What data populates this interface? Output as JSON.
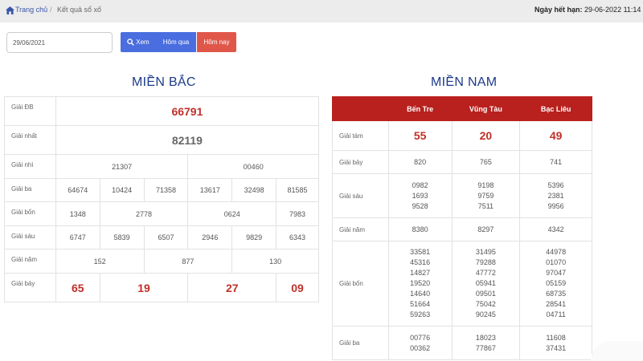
{
  "breadcrumb": {
    "home": "Trang chủ",
    "separator": "/",
    "current": "Kết quả sổ xố"
  },
  "expiry": {
    "label": "Ngày hết hạn:",
    "value": "29-06-2022 11:14"
  },
  "controls": {
    "date_value": "29/06/2021",
    "xem_label": "Xem",
    "homqua_label": "Hôm qua",
    "homnay_label": "Hôm nay"
  },
  "mien_bac": {
    "title": "MIỀN BẮC",
    "labels": {
      "db": "Giải ĐB",
      "nhat": "Giải nhất",
      "nhi": "Giải nhì",
      "ba": "Giải ba",
      "bon": "Giải bốn",
      "sau": "Giải sáu",
      "nam": "Giải năm",
      "bay": "Giải bảy"
    },
    "db": "66791",
    "nhat": "82119",
    "nhi": [
      "21307",
      "00460"
    ],
    "ba": [
      "64674",
      "10424",
      "71358",
      "13617",
      "32498",
      "81585"
    ],
    "bon": [
      "1348",
      "2778",
      "0624",
      "7983"
    ],
    "sau": [
      "6747",
      "5839",
      "6507",
      "2946",
      "9829",
      "6343"
    ],
    "nam": [
      "152",
      "877",
      "130"
    ],
    "bay": [
      "65",
      "19",
      "27",
      "09"
    ]
  },
  "mien_nam": {
    "title": "MIỀN NAM",
    "provinces": [
      "Bến Tre",
      "Vũng Tàu",
      "Bạc Liêu"
    ],
    "labels": {
      "tam": "Giải tám",
      "bay": "Giải bảy",
      "sau": "Giải sáu",
      "nam": "Giải năm",
      "bon": "Giải bốn",
      "ba": "Giải ba"
    },
    "tam": [
      "55",
      "20",
      "49"
    ],
    "bay": [
      "820",
      "765",
      "741"
    ],
    "sau": [
      "0982\n1693\n9528",
      "9198\n9759\n7511",
      "5396\n2381\n9956"
    ],
    "nam": [
      "8380",
      "8297",
      "4342"
    ],
    "bon": [
      "33581\n45316\n14827\n19520\n14640\n51664\n59263",
      "31495\n79288\n47772\n05941\n09501\n75042\n90245",
      "44978\n01070\n97047\n05159\n68735\n28541\n04711"
    ],
    "ba": [
      "00776\n00362",
      "18023\n77867",
      "11608\n37431"
    ]
  }
}
